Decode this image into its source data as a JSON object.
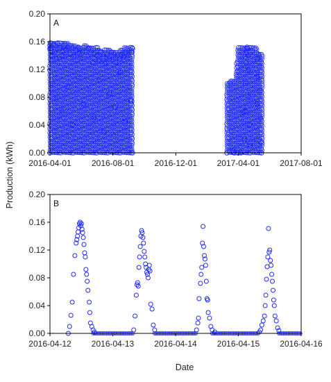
{
  "figure": {
    "ylabel": "Production (kWh)",
    "xlabel": "Date",
    "marker_color": "#1f2bff"
  },
  "chart_data": [
    {
      "type": "scatter",
      "panel_label": "A",
      "xlabel": "",
      "ylabel": "Production (kWh)",
      "xlim": [
        "2016-04-01",
        "2017-08-01"
      ],
      "ylim": [
        0,
        0.2
      ],
      "xticks": [
        "2016-04-01",
        "2016-08-01",
        "2016-12-01",
        "2017-04-01",
        "2017-08-01"
      ],
      "yticks": [
        "0.00",
        "0.04",
        "0.08",
        "0.12",
        "0.16",
        "0.20"
      ],
      "grid": false,
      "marker": "open-circle",
      "series": [
        {
          "points": [
            [
              "2016-04-01",
              0.15
            ],
            [
              "2016-04-01",
              0.155
            ],
            [
              "2016-04-02",
              0.158
            ],
            [
              "2016-04-03",
              0.15
            ],
            [
              "2016-04-05",
              0.14
            ],
            [
              "2016-04-08",
              0.156
            ],
            [
              "2016-04-10",
              0.145
            ],
            [
              "2016-04-13",
              0.135
            ],
            [
              "2016-04-16",
              0.158
            ],
            [
              "2016-04-20",
              0.15
            ],
            [
              "2016-04-24",
              0.14
            ],
            [
              "2016-04-28",
              0.155
            ],
            [
              "2016-05-02",
              0.148
            ],
            [
              "2016-05-06",
              0.152
            ],
            [
              "2016-05-10",
              0.142
            ],
            [
              "2016-05-14",
              0.15
            ],
            [
              "2016-05-18",
              0.138
            ],
            [
              "2016-05-22",
              0.148
            ],
            [
              "2016-05-26",
              0.152
            ],
            [
              "2016-05-30",
              0.14
            ],
            [
              "2016-06-03",
              0.146
            ],
            [
              "2016-06-07",
              0.135
            ],
            [
              "2016-06-11",
              0.145
            ],
            [
              "2016-06-15",
              0.15
            ],
            [
              "2016-06-19",
              0.142
            ],
            [
              "2016-06-23",
              0.13
            ],
            [
              "2016-06-27",
              0.144
            ],
            [
              "2016-07-01",
              0.14
            ],
            [
              "2016-07-05",
              0.132
            ],
            [
              "2016-07-09",
              0.146
            ],
            [
              "2016-07-13",
              0.138
            ],
            [
              "2016-07-17",
              0.128
            ],
            [
              "2016-07-21",
              0.142
            ],
            [
              "2016-07-25",
              0.135
            ],
            [
              "2016-07-29",
              0.145
            ],
            [
              "2016-08-02",
              0.138
            ],
            [
              "2016-08-06",
              0.13
            ],
            [
              "2016-08-10",
              0.14
            ],
            [
              "2016-08-14",
              0.135
            ],
            [
              "2016-08-18",
              0.142
            ],
            [
              "2016-08-22",
              0.138
            ],
            [
              "2016-08-26",
              0.145
            ],
            [
              "2016-08-30",
              0.14
            ],
            [
              "2016-09-03",
              0.148
            ],
            [
              "2016-09-06",
              0.145
            ],
            [
              "2016-09-08",
              0.15
            ],
            [
              "2016-04-05",
              0.1
            ],
            [
              "2016-04-15",
              0.08
            ],
            [
              "2016-04-25",
              0.06
            ],
            [
              "2016-05-05",
              0.095
            ],
            [
              "2016-05-15",
              0.04
            ],
            [
              "2016-05-25",
              0.11
            ],
            [
              "2016-06-05",
              0.07
            ],
            [
              "2016-06-15",
              0.09
            ],
            [
              "2016-06-25",
              0.05
            ],
            [
              "2016-07-05",
              0.105
            ],
            [
              "2016-07-15",
              0.03
            ],
            [
              "2016-07-25",
              0.085
            ],
            [
              "2016-08-05",
              0.065
            ],
            [
              "2016-08-15",
              0.115
            ],
            [
              "2016-08-25",
              0.045
            ],
            [
              "2016-09-05",
              0.075
            ],
            [
              "2016-04-01",
              0.0
            ],
            [
              "2016-09-08",
              0.0
            ],
            [
              "2017-03-10",
              0.0
            ],
            [
              "2017-03-16",
              0.101
            ],
            [
              "2017-03-22",
              0.003
            ],
            [
              "2017-03-24",
              0.0
            ],
            [
              "2017-04-01",
              0.0
            ],
            [
              "2017-04-06",
              0.0
            ],
            [
              "2017-04-10",
              0.058
            ],
            [
              "2017-04-13",
              0.02
            ],
            [
              "2017-04-14",
              0.06
            ],
            [
              "2017-04-15",
              0.1
            ],
            [
              "2017-04-16",
              0.13
            ],
            [
              "2017-04-17",
              0.145
            ],
            [
              "2017-04-18",
              0.152
            ],
            [
              "2017-04-19",
              0.15
            ],
            [
              "2017-04-20",
              0.14
            ],
            [
              "2017-04-21",
              0.12
            ],
            [
              "2017-04-22",
              0.08
            ],
            [
              "2017-04-23",
              0.04
            ],
            [
              "2017-04-24",
              0.01
            ],
            [
              "2017-05-06",
              0.02
            ],
            [
              "2017-05-07",
              0.07
            ],
            [
              "2017-05-08",
              0.11
            ],
            [
              "2017-05-09",
              0.135
            ],
            [
              "2017-05-10",
              0.142
            ],
            [
              "2017-05-11",
              0.14
            ],
            [
              "2017-05-12",
              0.125
            ],
            [
              "2017-05-13",
              0.09
            ],
            [
              "2017-05-14",
              0.05
            ],
            [
              "2017-05-15",
              0.015
            ],
            [
              "2017-05-16",
              0.0
            ]
          ]
        }
      ]
    },
    {
      "type": "scatter",
      "panel_label": "B",
      "xlabel": "Date",
      "ylabel": "Production (kWh)",
      "xlim": [
        "2016-04-12",
        "2016-04-16"
      ],
      "ylim": [
        0,
        0.2
      ],
      "xticks": [
        "2016-04-12",
        "2016-04-13",
        "2016-04-14",
        "2016-04-15",
        "2016-04-16"
      ],
      "yticks": [
        "0.00",
        "0.04",
        "0.08",
        "0.12",
        "0.16",
        "0.20"
      ],
      "grid": false,
      "marker": "open-circle",
      "series": [
        {
          "points": [
            [
              "2016-04-12 07:00",
              0.0
            ],
            [
              "2016-04-12 07:30",
              0.01
            ],
            [
              "2016-04-12 08:00",
              0.026
            ],
            [
              "2016-04-12 08:30",
              0.045
            ],
            [
              "2016-04-12 09:00",
              0.085
            ],
            [
              "2016-04-12 09:30",
              0.112
            ],
            [
              "2016-04-12 10:00",
              0.13
            ],
            [
              "2016-04-12 10:15",
              0.135
            ],
            [
              "2016-04-12 10:30",
              0.14
            ],
            [
              "2016-04-12 10:45",
              0.146
            ],
            [
              "2016-04-12 11:00",
              0.152
            ],
            [
              "2016-04-12 11:15",
              0.158
            ],
            [
              "2016-04-12 11:30",
              0.16
            ],
            [
              "2016-04-12 11:45",
              0.155
            ],
            [
              "2016-04-12 12:00",
              0.158
            ],
            [
              "2016-04-12 12:15",
              0.15
            ],
            [
              "2016-04-12 12:30",
              0.145
            ],
            [
              "2016-04-12 12:45",
              0.138
            ],
            [
              "2016-04-12 13:00",
              0.128
            ],
            [
              "2016-04-12 13:15",
              0.116
            ],
            [
              "2016-04-12 13:30",
              0.11
            ],
            [
              "2016-04-12 13:45",
              0.092
            ],
            [
              "2016-04-12 14:00",
              0.085
            ],
            [
              "2016-04-12 14:15",
              0.075
            ],
            [
              "2016-04-12 14:30",
              0.062
            ],
            [
              "2016-04-12 15:00",
              0.045
            ],
            [
              "2016-04-12 15:15",
              0.03
            ],
            [
              "2016-04-12 15:30",
              0.015
            ],
            [
              "2016-04-12 16:00",
              0.01
            ],
            [
              "2016-04-12 16:30",
              0.005
            ],
            [
              "2016-04-12 17:00",
              0.002
            ],
            [
              "2016-04-13 08:00",
              0.005
            ],
            [
              "2016-04-13 08:30",
              0.025
            ],
            [
              "2016-04-13 09:00",
              0.055
            ],
            [
              "2016-04-13 09:15",
              0.07
            ],
            [
              "2016-04-13 09:30",
              0.073
            ],
            [
              "2016-04-13 09:45",
              0.068
            ],
            [
              "2016-04-13 10:00",
              0.095
            ],
            [
              "2016-04-13 10:15",
              0.11
            ],
            [
              "2016-04-13 10:30",
              0.125
            ],
            [
              "2016-04-13 10:45",
              0.14
            ],
            [
              "2016-04-13 11:00",
              0.148
            ],
            [
              "2016-04-13 11:15",
              0.145
            ],
            [
              "2016-04-13 11:30",
              0.138
            ],
            [
              "2016-04-13 11:45",
              0.13
            ],
            [
              "2016-04-13 12:00",
              0.118
            ],
            [
              "2016-04-13 12:15",
              0.11
            ],
            [
              "2016-04-13 12:30",
              0.1
            ],
            [
              "2016-04-13 12:45",
              0.095
            ],
            [
              "2016-04-13 13:00",
              0.088
            ],
            [
              "2016-04-13 13:15",
              0.085
            ],
            [
              "2016-04-13 13:30",
              0.08
            ],
            [
              "2016-04-13 13:45",
              0.092
            ],
            [
              "2016-04-13 14:00",
              0.098
            ],
            [
              "2016-04-13 14:15",
              0.09
            ],
            [
              "2016-04-13 14:30",
              0.042
            ],
            [
              "2016-04-13 15:00",
              0.035
            ],
            [
              "2016-04-13 15:30",
              0.012
            ],
            [
              "2016-04-13 16:00",
              0.005
            ],
            [
              "2016-04-14 08:00",
              0.005
            ],
            [
              "2016-04-14 08:30",
              0.015
            ],
            [
              "2016-04-14 08:45",
              0.022
            ],
            [
              "2016-04-14 09:00",
              0.05
            ],
            [
              "2016-04-14 09:30",
              0.072
            ],
            [
              "2016-04-14 09:45",
              0.085
            ],
            [
              "2016-04-14 10:00",
              0.095
            ],
            [
              "2016-04-14 10:15",
              0.13
            ],
            [
              "2016-04-14 10:30",
              0.154
            ],
            [
              "2016-04-14 10:45",
              0.125
            ],
            [
              "2016-04-14 11:00",
              0.112
            ],
            [
              "2016-04-14 11:15",
              0.107
            ],
            [
              "2016-04-14 11:30",
              0.098
            ],
            [
              "2016-04-14 11:45",
              0.075
            ],
            [
              "2016-04-14 12:00",
              0.05
            ],
            [
              "2016-04-14 12:15",
              0.048
            ],
            [
              "2016-04-14 12:30",
              0.03
            ],
            [
              "2016-04-14 13:00",
              0.022
            ],
            [
              "2016-04-14 13:30",
              0.01
            ],
            [
              "2016-04-14 14:00",
              0.005
            ],
            [
              "2016-04-14 15:00",
              0.002
            ],
            [
              "2016-04-15 08:00",
              0.002
            ],
            [
              "2016-04-15 08:30",
              0.005
            ],
            [
              "2016-04-15 09:00",
              0.012
            ],
            [
              "2016-04-15 09:30",
              0.018
            ],
            [
              "2016-04-15 10:00",
              0.025
            ],
            [
              "2016-04-15 10:15",
              0.04
            ],
            [
              "2016-04-15 10:30",
              0.055
            ],
            [
              "2016-04-15 10:45",
              0.078
            ],
            [
              "2016-04-15 11:00",
              0.096
            ],
            [
              "2016-04-15 11:15",
              0.11
            ],
            [
              "2016-04-15 11:30",
              0.151
            ],
            [
              "2016-04-15 11:45",
              0.117
            ],
            [
              "2016-04-15 12:00",
              0.12
            ],
            [
              "2016-04-15 12:15",
              0.105
            ],
            [
              "2016-04-15 12:30",
              0.098
            ],
            [
              "2016-04-15 12:45",
              0.085
            ],
            [
              "2016-04-15 13:00",
              0.075
            ],
            [
              "2016-04-15 13:15",
              0.062
            ],
            [
              "2016-04-15 13:30",
              0.048
            ],
            [
              "2016-04-15 13:45",
              0.04
            ],
            [
              "2016-04-15 14:00",
              0.025
            ],
            [
              "2016-04-15 14:30",
              0.018
            ],
            [
              "2016-04-15 15:00",
              0.008
            ],
            [
              "2016-04-15 15:30",
              0.004
            ]
          ]
        }
      ]
    }
  ]
}
